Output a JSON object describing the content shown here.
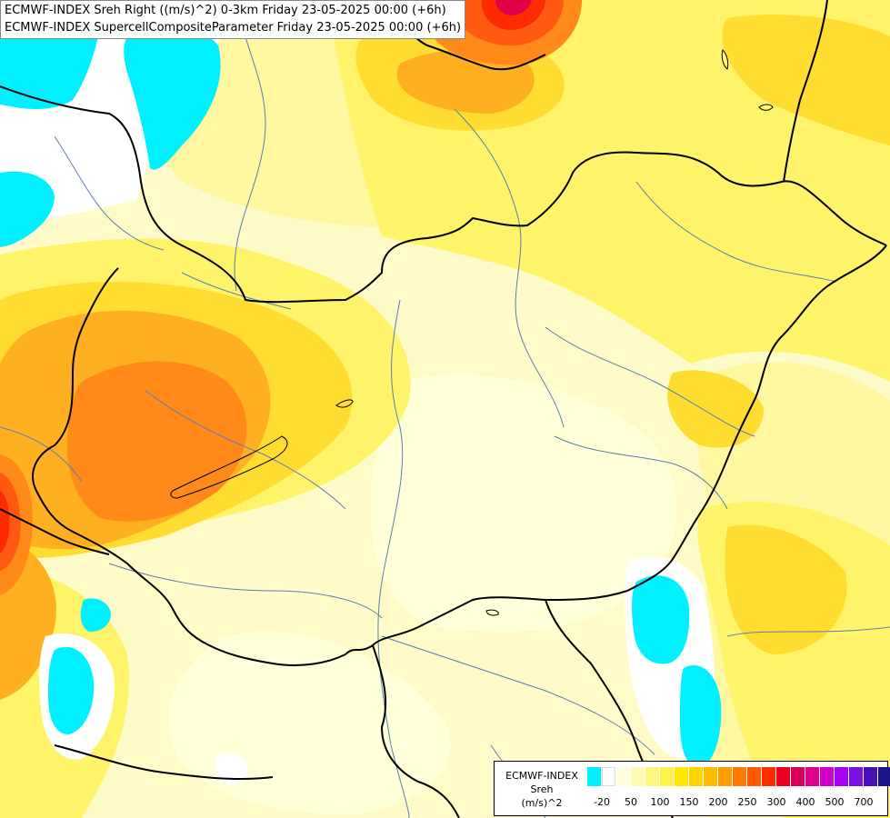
{
  "header": {
    "line1": "ECMWF-INDEX Sreh Right ((m/s)^2) 0-3km Friday 23-05-2025 00:00 (+6h)",
    "line2": "ECMWF-INDEX SupercellCompositeParameter Friday 23-05-2025 00:00 (+6h)"
  },
  "legend": {
    "title_line1": "ECMWF-INDEX",
    "title_line2": "Sreh",
    "title_line3": "(m/s)^2",
    "colors": [
      "#00f0ff",
      "#ffffff",
      "#fffde0",
      "#fffbb3",
      "#fff680",
      "#fff04a",
      "#ffe800",
      "#ffd200",
      "#ffbb00",
      "#ff9c00",
      "#ff7a00",
      "#ff5a00",
      "#ff2e00",
      "#ee0022",
      "#d8005a",
      "#e0008c",
      "#d000c8",
      "#a800f0",
      "#7a10e0",
      "#4a10b8",
      "#1a1488"
    ],
    "ticks": [
      {
        "label": "-20",
        "index": 1
      },
      {
        "label": "50",
        "index": 3
      },
      {
        "label": "100",
        "index": 5
      },
      {
        "label": "150",
        "index": 7
      },
      {
        "label": "200",
        "index": 9
      },
      {
        "label": "250",
        "index": 11
      },
      {
        "label": "300",
        "index": 13
      },
      {
        "label": "400",
        "index": 15
      },
      {
        "label": "500",
        "index": 17
      },
      {
        "label": "700",
        "index": 19
      }
    ]
  },
  "map": {
    "fill_colors": {
      "background": "#fffbc8",
      "pale": "#ffffd8",
      "light_yellow": "#fff8a0",
      "yellow": "#fff36a",
      "gold": "#ffdc30",
      "orange": "#ffb020",
      "dark_orange": "#ff8a1a",
      "red_orange": "#ff5a10",
      "red": "#ff2a00",
      "crimson": "#e0004a",
      "cyan": "#00f0ff",
      "white": "#ffffff"
    },
    "line_colors": {
      "border": "#000000",
      "river": "#5a7fb0"
    }
  }
}
